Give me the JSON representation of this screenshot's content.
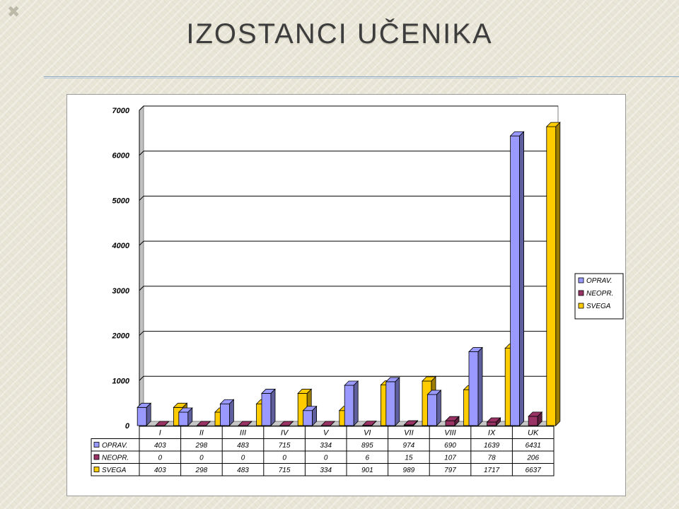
{
  "slide": {
    "title": "IZOSTANCI UČENIKA",
    "corner_mark": "✖"
  },
  "chart_data": {
    "type": "bar",
    "categories": [
      "I",
      "II",
      "III",
      "IV",
      "V",
      "VI",
      "VII",
      "VIII",
      "IX",
      "UK"
    ],
    "series": [
      {
        "name": "OPRAV.",
        "values": [
          403,
          298,
          483,
          715,
          334,
          895,
          974,
          690,
          1639,
          6431
        ],
        "color": "#9999ff"
      },
      {
        "name": "NEOPR.",
        "values": [
          0,
          0,
          0,
          0,
          0,
          6,
          15,
          107,
          78,
          206
        ],
        "color": "#993366"
      },
      {
        "name": "SVEGA",
        "values": [
          403,
          298,
          483,
          715,
          334,
          901,
          989,
          797,
          1717,
          6637
        ],
        "color": "#ffcc00"
      }
    ],
    "ylim": [
      0,
      7000
    ],
    "yticks": [
      0,
      1000,
      2000,
      3000,
      4000,
      5000,
      6000,
      7000
    ],
    "grid": true,
    "legend": "right",
    "data_table": true,
    "title": "",
    "xlabel": "",
    "ylabel": ""
  }
}
